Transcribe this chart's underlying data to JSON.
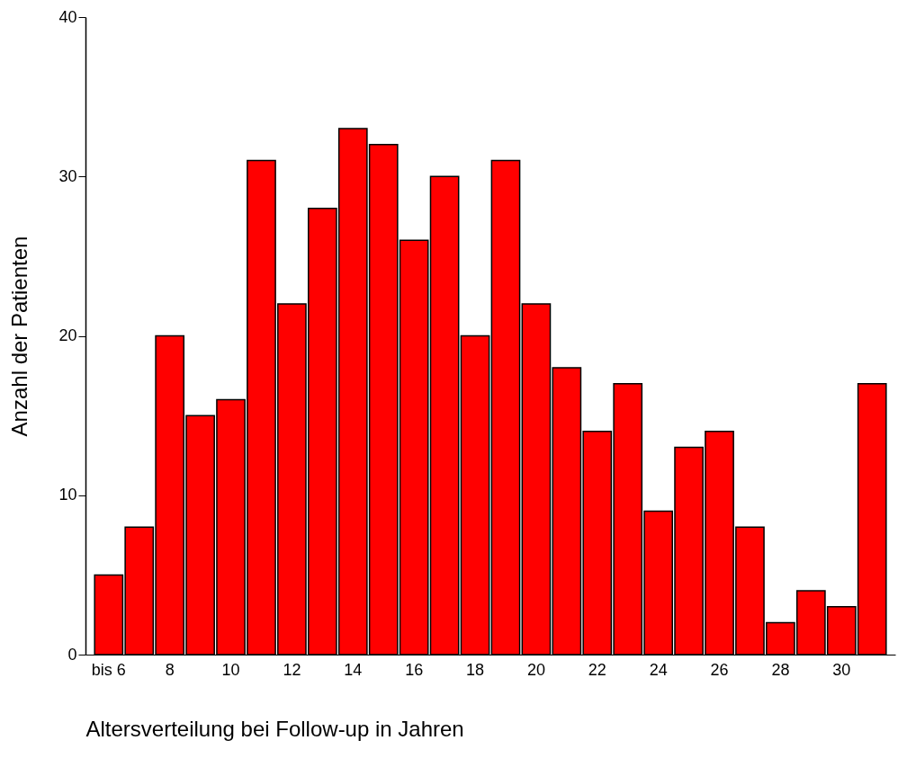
{
  "chart_data": {
    "type": "bar",
    "xlabel": "Altersverteilung bei Follow-up in Jahren",
    "ylabel": "Anzahl der Patienten",
    "categories": [
      "bis 6",
      null,
      "8",
      null,
      "10",
      null,
      "12",
      null,
      "14",
      null,
      "16",
      null,
      "18",
      null,
      "20",
      null,
      "22",
      null,
      "24",
      null,
      "26",
      null,
      "28",
      null,
      "30",
      null
    ],
    "values": [
      5,
      8,
      20,
      15,
      16,
      31,
      22,
      28,
      33,
      32,
      26,
      30,
      20,
      31,
      22,
      18,
      14,
      17,
      9,
      13,
      14,
      8,
      2,
      4,
      3,
      17
    ],
    "color": "#ff0000",
    "ylim": [
      0,
      40
    ],
    "yticks": [
      0,
      10,
      20,
      30,
      40
    ],
    "grid": false
  }
}
